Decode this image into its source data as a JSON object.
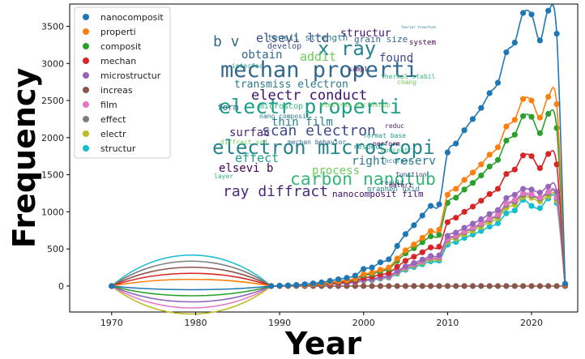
{
  "chart_data": {
    "type": "line",
    "title": "",
    "xlabel": "Year",
    "ylabel": "Frequency",
    "xlim": [
      1965,
      2025.5
    ],
    "ylim": [
      -350,
      3800
    ],
    "xticks": [
      1970,
      1980,
      1990,
      2000,
      2010,
      2020
    ],
    "yticks": [
      0,
      500,
      1000,
      1500,
      2000,
      2500,
      3000,
      3500
    ],
    "grid": false,
    "legend_position": "top-left",
    "x": [
      1970,
      1989,
      1990,
      1991,
      1992,
      1993,
      1994,
      1995,
      1996,
      1997,
      1998,
      1999,
      2000,
      2001,
      2002,
      2003,
      2004,
      2005,
      2006,
      2007,
      2008,
      2009,
      2010,
      2011,
      2012,
      2013,
      2014,
      2015,
      2016,
      2017,
      2018,
      2019,
      2020,
      2021,
      2022,
      2023,
      2024
    ],
    "series": [
      {
        "name": "nanocomposit",
        "color": "#1f77b4",
        "values": [
          0,
          0,
          5,
          8,
          15,
          25,
          35,
          50,
          70,
          90,
          110,
          140,
          230,
          250,
          320,
          360,
          540,
          700,
          820,
          950,
          1080,
          1100,
          1800,
          1920,
          2100,
          2250,
          2400,
          2600,
          2740,
          3150,
          3280,
          3680,
          3660,
          3310,
          3710,
          3400,
          30
        ]
      },
      {
        "name": "properti",
        "color": "#ff7f0e",
        "values": [
          0,
          0,
          3,
          5,
          10,
          15,
          25,
          35,
          50,
          65,
          80,
          100,
          160,
          180,
          220,
          250,
          370,
          480,
          560,
          650,
          740,
          760,
          1230,
          1310,
          1430,
          1530,
          1640,
          1770,
          1870,
          2150,
          2240,
          2520,
          2500,
          2270,
          2550,
          2450,
          20
        ]
      },
      {
        "name": "composit",
        "color": "#2ca02c",
        "values": [
          0,
          0,
          3,
          5,
          10,
          15,
          20,
          30,
          45,
          60,
          75,
          90,
          145,
          160,
          200,
          230,
          340,
          440,
          510,
          590,
          670,
          690,
          1120,
          1190,
          1300,
          1390,
          1490,
          1610,
          1700,
          1960,
          2040,
          2290,
          2280,
          2060,
          2320,
          2130,
          20
        ]
      },
      {
        "name": "mechan",
        "color": "#d62728",
        "values": [
          0,
          0,
          2,
          4,
          8,
          12,
          18,
          25,
          35,
          45,
          58,
          70,
          110,
          125,
          155,
          175,
          260,
          340,
          395,
          455,
          520,
          530,
          860,
          920,
          1000,
          1070,
          1150,
          1240,
          1310,
          1510,
          1570,
          1760,
          1750,
          1590,
          1780,
          1640,
          15
        ]
      },
      {
        "name": "microstructur",
        "color": "#9467bd",
        "values": [
          0,
          0,
          2,
          3,
          6,
          10,
          14,
          20,
          28,
          36,
          45,
          55,
          85,
          95,
          120,
          140,
          200,
          265,
          310,
          355,
          405,
          415,
          675,
          720,
          785,
          840,
          900,
          970,
          1025,
          1185,
          1230,
          1310,
          1300,
          1260,
          1340,
          1270,
          10
        ]
      },
      {
        "name": "increas",
        "color": "#8c564b",
        "values": [
          0,
          0,
          0,
          0,
          0,
          0,
          0,
          0,
          0,
          0,
          0,
          0,
          0,
          0,
          0,
          0,
          0,
          0,
          0,
          0,
          0,
          0,
          0,
          0,
          0,
          0,
          0,
          0,
          0,
          0,
          0,
          0,
          0,
          0,
          0,
          0,
          0
        ]
      },
      {
        "name": "film",
        "color": "#e377c2",
        "values": [
          0,
          0,
          2,
          3,
          6,
          9,
          13,
          18,
          25,
          33,
          41,
          50,
          80,
          90,
          112,
          128,
          190,
          250,
          292,
          335,
          382,
          390,
          635,
          678,
          738,
          790,
          845,
          912,
          965,
          1115,
          1158,
          1250,
          1240,
          1190,
          1270,
          1200,
          10
        ]
      },
      {
        "name": "effect",
        "color": "#7f7f7f",
        "values": [
          0,
          0,
          2,
          3,
          6,
          9,
          13,
          18,
          25,
          33,
          41,
          50,
          78,
          88,
          110,
          125,
          185,
          245,
          285,
          328,
          375,
          383,
          622,
          665,
          724,
          775,
          830,
          895,
          946,
          1094,
          1136,
          1228,
          1222,
          1176,
          1250,
          1185,
          10
        ]
      },
      {
        "name": "electr",
        "color": "#bcbd22",
        "values": [
          0,
          0,
          2,
          3,
          5,
          8,
          12,
          17,
          24,
          31,
          39,
          47,
          75,
          84,
          105,
          120,
          178,
          235,
          275,
          315,
          360,
          368,
          598,
          640,
          698,
          746,
          800,
          862,
          912,
          1055,
          1096,
          1200,
          1190,
          1140,
          1210,
          1150,
          10
        ]
      },
      {
        "name": "structur",
        "color": "#17becf",
        "values": [
          0,
          0,
          2,
          3,
          5,
          8,
          11,
          16,
          22,
          29,
          36,
          44,
          70,
          78,
          98,
          112,
          165,
          218,
          255,
          292,
          334,
          342,
          556,
          594,
          648,
          693,
          742,
          800,
          846,
          980,
          1018,
          1160,
          1080,
          1050,
          1180,
          1120,
          10
        ]
      }
    ],
    "wordcloud_words": [
      "mechan properti",
      "electron microscopi",
      "electr properti",
      "x ray",
      "elsevi ltd",
      "carbon nanotub",
      "ray diffract",
      "scan electron",
      "electr conduct",
      "transmiss electron",
      "thin film",
      "right reserv",
      "effect",
      "structur",
      "obtain",
      "addit",
      "found",
      "form",
      "surfac",
      "process",
      "elsevi b",
      "nanocomposit film",
      "tensil strength",
      "grain size",
      "b v",
      "microscop",
      "develop",
      "system",
      "perform",
      "graphen oxid",
      "thermal stabil",
      "diffract xrd",
      "nano composit",
      "respect",
      "concentr",
      "incorpor",
      "function",
      "result",
      "materi",
      "interfac",
      "sampl",
      "chang",
      "reduc",
      "layer",
      "mechan behavior",
      "format base",
      "electron microscop",
      "fourier transform"
    ]
  }
}
